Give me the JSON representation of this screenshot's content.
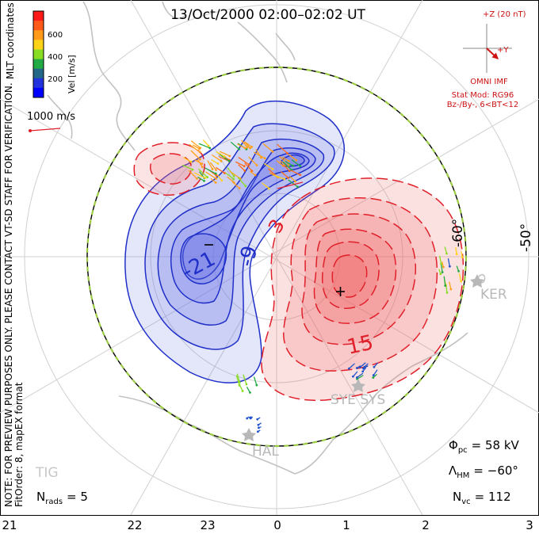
{
  "title": "13/Oct/2000 02:00–02:02 UT",
  "colorbar": {
    "axis_label": "Vel [m/s]",
    "coord_label": "MLT coordinates",
    "ticks": [
      "600",
      "400",
      "200"
    ],
    "colors": [
      "#ff1a1a",
      "#ff5a1a",
      "#ff9a1a",
      "#ffd21a",
      "#88dd22",
      "#22aa44",
      "#226688",
      "#2233dd",
      "#0000ff"
    ]
  },
  "vector_scale": {
    "label": "1000 m/s"
  },
  "imf": {
    "z_label": "+Z (20 nT)",
    "y_label": "+Y",
    "source": "OMNI IMF",
    "stat_model": "Stat Mod: RG96",
    "conditions": "Bz-/By-, 6<BT<12"
  },
  "latitude_labels": {
    "inner": "-60°",
    "outer": "-50°"
  },
  "contour_labels": {
    "neg_a": "-21",
    "neg_b": "-9",
    "pos_a": "15",
    "pos_b": "3"
  },
  "stations": {
    "ker": "KER",
    "sye_sys": "SYE SYS",
    "hal": "HAL",
    "tig": "TIG"
  },
  "side_note": "NOTE: FOR PREVIEW PURPOSES ONLY. PLEASE CONTACT VT-SD STAFF FOR VERIFICATION.",
  "fit_order": "FitOrder: 8, mapEX format",
  "stats": {
    "nrads_label": "N",
    "nrads_sub": "rads",
    "nrads_value": "= 5",
    "phi_label": "Φ",
    "phi_sub": "pc",
    "phi_value": "= 58 kV",
    "lambda_label": "Λ",
    "lambda_sub": "HM",
    "lambda_value": "= −60°",
    "nvc_label": "N",
    "nvc_sub": "vc",
    "nvc_value": "= 112"
  },
  "mlt_ticks": [
    "21",
    "22",
    "23",
    "0",
    "1",
    "2",
    "3"
  ],
  "colors": {
    "negative": "#1f2fc8",
    "negative_fill": "#6a73e6",
    "positive": "#e0202a",
    "positive_fill": "#ef6a6a",
    "coast": "#c2c2c2",
    "grid": "#d0d0d0",
    "hmb_dash": "#9ccc44",
    "imf_text": "#cc1111"
  }
}
